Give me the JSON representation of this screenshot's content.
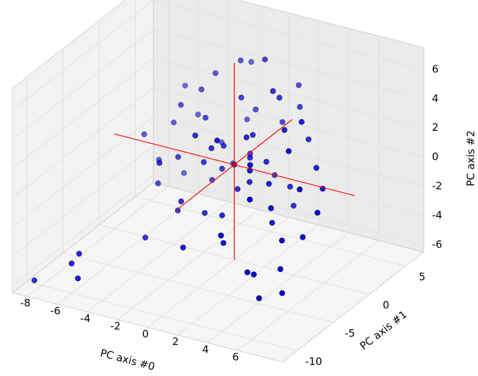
{
  "chart_data": {
    "type": "scatter3d",
    "xlabel": "PC axis #0",
    "ylabel": "PC axis #1",
    "zlabel": "PC axis #2",
    "xlim": [
      -9,
      9
    ],
    "ylim": [
      -12,
      7.5
    ],
    "zlim": [
      -6.5,
      7.5
    ],
    "xticks": [
      -8,
      -6,
      -4,
      -2,
      0,
      2,
      4,
      6
    ],
    "yticks": [
      -10,
      -5,
      0,
      5
    ],
    "zticks": [
      -6,
      -4,
      -2,
      0,
      2,
      4,
      6
    ],
    "grid": true,
    "color": "#0000ff",
    "points": [
      [
        -8.5,
        -10,
        -6.3
      ],
      [
        -5.6,
        -10,
        -5.4
      ],
      [
        -6.5,
        -9,
        -5.0
      ],
      [
        -6.0,
        -9,
        -4.2
      ],
      [
        -3.2,
        2.1,
        3.5
      ],
      [
        -1.5,
        4.0,
        5.2
      ],
      [
        0.5,
        3.2,
        6.1
      ],
      [
        1.8,
        2.5,
        4.1
      ],
      [
        -2.4,
        1.0,
        2.2
      ],
      [
        3.1,
        0.5,
        3.0
      ],
      [
        4.2,
        -1.2,
        2.5
      ],
      [
        2.5,
        -3.0,
        1.8
      ],
      [
        -4.1,
        3.5,
        1.0
      ],
      [
        -0.8,
        -1.5,
        1.5
      ],
      [
        0.9,
        0.3,
        0.6
      ],
      [
        1.5,
        -1.0,
        -0.4
      ],
      [
        -1.2,
        0.8,
        -0.9
      ],
      [
        2.8,
        1.9,
        -1.5
      ],
      [
        -3.5,
        -0.5,
        -0.2
      ],
      [
        -5.0,
        2.0,
        0.8
      ],
      [
        -2.0,
        -3.2,
        -1.8
      ],
      [
        0.2,
        -2.1,
        -2.6
      ],
      [
        3.6,
        -2.4,
        -1.1
      ],
      [
        5.1,
        -4.0,
        -2.3
      ],
      [
        6.2,
        -6.5,
        -3.0
      ],
      [
        6.8,
        -7.5,
        -4.1
      ],
      [
        5.5,
        -8.0,
        -4.6
      ],
      [
        4.0,
        -6.5,
        -3.8
      ],
      [
        1.2,
        -4.0,
        -3.5
      ],
      [
        -1.0,
        -5.0,
        -4.0
      ],
      [
        -2.8,
        -2.0,
        -3.1
      ],
      [
        -4.5,
        -1.2,
        -2.0
      ],
      [
        -3.0,
        4.5,
        -1.0
      ],
      [
        -1.8,
        5.5,
        0.5
      ],
      [
        0.8,
        5.0,
        1.2
      ],
      [
        2.2,
        4.5,
        2.8
      ],
      [
        3.5,
        3.0,
        1.5
      ],
      [
        4.5,
        2.0,
        0.2
      ],
      [
        5.5,
        0.8,
        -0.5
      ],
      [
        6.5,
        -2.0,
        -0.8
      ],
      [
        -0.4,
        1.8,
        3.8
      ],
      [
        1.1,
        -0.6,
        2.4
      ],
      [
        -2.6,
        2.8,
        4.5
      ],
      [
        0.0,
        0.0,
        0.0
      ],
      [
        0.6,
        -0.8,
        -1.2
      ],
      [
        -0.9,
        0.4,
        0.9
      ],
      [
        1.7,
        0.9,
        0.3
      ],
      [
        -1.6,
        -0.9,
        0.1
      ],
      [
        2.0,
        -2.0,
        0.9
      ],
      [
        -2.2,
        1.5,
        -2.2
      ],
      [
        3.0,
        -1.0,
        -2.8
      ],
      [
        -3.8,
        0.5,
        2.9
      ],
      [
        -5.5,
        1.0,
        -1.5
      ],
      [
        -4.8,
        3.0,
        -3.0
      ],
      [
        -2.5,
        5.0,
        -2.5
      ],
      [
        1.0,
        3.5,
        -1.8
      ],
      [
        2.6,
        2.8,
        -3.2
      ],
      [
        4.8,
        -0.5,
        -3.5
      ],
      [
        3.2,
        -4.5,
        0.2
      ],
      [
        0.4,
        -3.2,
        3.0
      ],
      [
        -1.4,
        -2.5,
        2.6
      ],
      [
        -3.3,
        -3.5,
        0.6
      ],
      [
        1.9,
        1.4,
        5.0
      ],
      [
        -0.2,
        2.6,
        -0.3
      ],
      [
        0.7,
        1.1,
        1.8
      ],
      [
        2.4,
        -0.2,
        -0.6
      ],
      [
        -1.1,
        -1.8,
        -2.9
      ],
      [
        4.0,
        1.0,
        3.6
      ],
      [
        -0.6,
        4.2,
        2.0
      ],
      [
        5.8,
        -3.0,
        1.0
      ],
      [
        3.8,
        -5.2,
        -4.5
      ],
      [
        2.0,
        -6.0,
        -2.0
      ],
      [
        -4.0,
        -4.0,
        -4.5
      ],
      [
        -6.0,
        0.0,
        0.5
      ],
      [
        -5.2,
        4.0,
        2.5
      ],
      [
        1.4,
        6.0,
        3.5
      ],
      [
        -2.0,
        6.5,
        4.0
      ]
    ],
    "axis_lines": {
      "color": "#ff0000",
      "segments": [
        [
          [
            -8,
            0,
            0
          ],
          [
            8,
            0,
            0
          ]
        ],
        [
          [
            0,
            -8,
            0
          ],
          [
            0,
            8,
            0
          ]
        ],
        [
          [
            0,
            0,
            -6.5
          ],
          [
            0,
            0,
            7
          ]
        ]
      ]
    }
  }
}
